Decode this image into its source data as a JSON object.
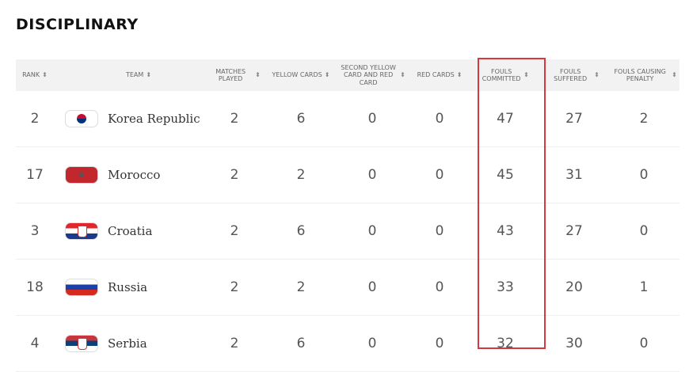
{
  "title": "DISCIPLINARY",
  "columns": [
    {
      "label": "RANK"
    },
    {
      "label": "TEAM"
    },
    {
      "label": "MATCHES PLAYED"
    },
    {
      "label": "YELLOW CARDS"
    },
    {
      "label": "SECOND YELLOW CARD AND RED CARD"
    },
    {
      "label": "RED CARDS"
    },
    {
      "label": "FOULS COMMITTED"
    },
    {
      "label": "FOULS SUFFERED"
    },
    {
      "label": "FOULS CAUSING PENALTY"
    }
  ],
  "sort_icon": "sort-arrows-icon",
  "highlight_color": "#d7373f",
  "rows": [
    {
      "rank": "2",
      "team": "Korea Republic",
      "mp": "2",
      "yc": "6",
      "syr": "0",
      "rc": "0",
      "fc": "47",
      "fs": "27",
      "fp": "2"
    },
    {
      "rank": "17",
      "team": "Morocco",
      "mp": "2",
      "yc": "2",
      "syr": "0",
      "rc": "0",
      "fc": "45",
      "fs": "31",
      "fp": "0"
    },
    {
      "rank": "3",
      "team": "Croatia",
      "mp": "2",
      "yc": "6",
      "syr": "0",
      "rc": "0",
      "fc": "43",
      "fs": "27",
      "fp": "0"
    },
    {
      "rank": "18",
      "team": "Russia",
      "mp": "2",
      "yc": "2",
      "syr": "0",
      "rc": "0",
      "fc": "33",
      "fs": "20",
      "fp": "1"
    },
    {
      "rank": "4",
      "team": "Serbia",
      "mp": "2",
      "yc": "6",
      "syr": "0",
      "rc": "0",
      "fc": "32",
      "fs": "30",
      "fp": "0"
    }
  ]
}
